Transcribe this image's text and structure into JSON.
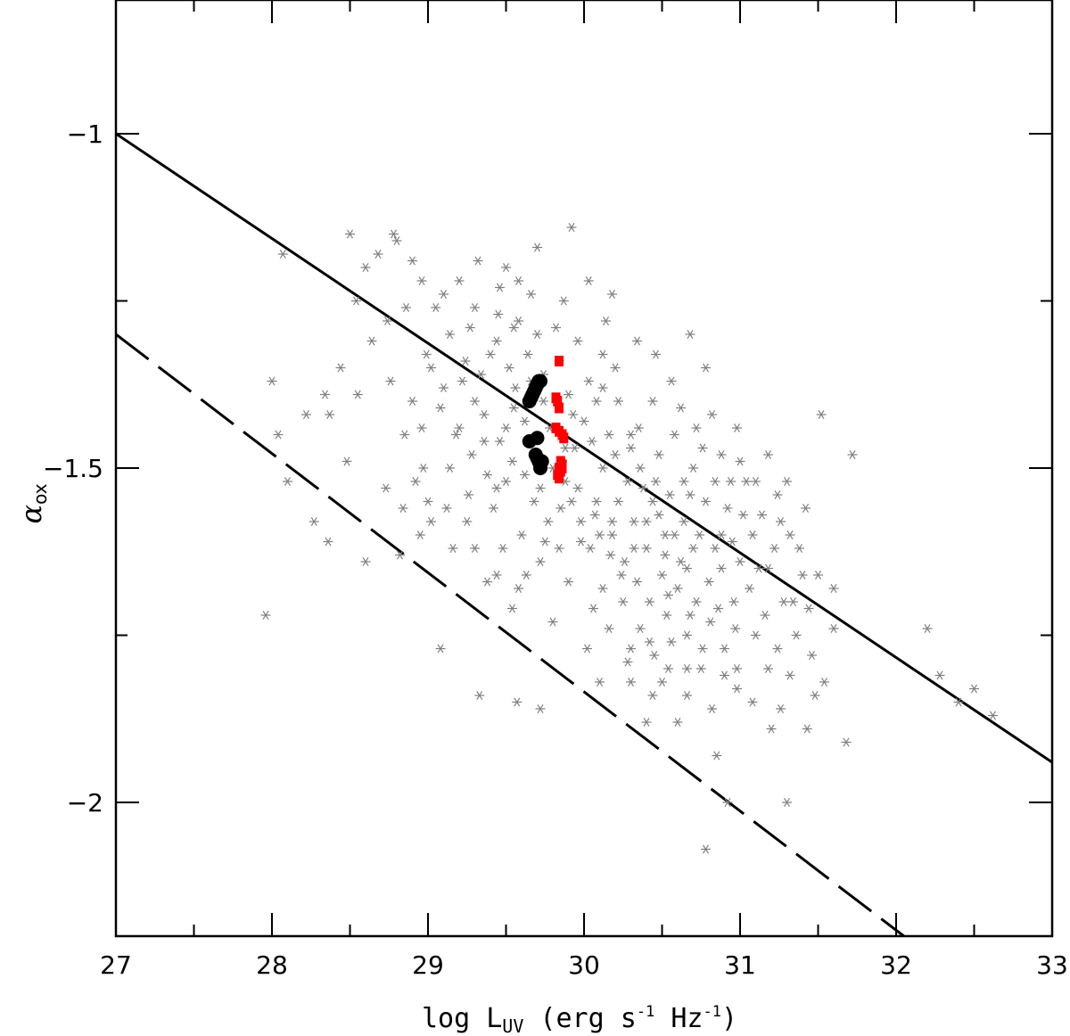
{
  "chart_data": {
    "type": "scatter",
    "title": "",
    "xlabel": {
      "prefix": "log L",
      "subscript": "UV",
      "unit_open": " (erg s",
      "unit_exp1": "-1",
      "unit_mid": " Hz",
      "unit_exp2": "-1",
      "unit_close": ")"
    },
    "ylabel": {
      "symbol": "α",
      "subscript": "ox"
    },
    "xlim": [
      27,
      33
    ],
    "ylim": [
      -2.2,
      -0.8
    ],
    "x_ticks": [
      {
        "value": 27,
        "label": "27"
      },
      {
        "value": 28,
        "label": "28"
      },
      {
        "value": 29,
        "label": "29"
      },
      {
        "value": 30,
        "label": "30"
      },
      {
        "value": 31,
        "label": "31"
      },
      {
        "value": 32,
        "label": "32"
      },
      {
        "value": 33,
        "label": "33"
      }
    ],
    "x_minor_step": 0.5,
    "y_ticks": [
      {
        "value": -1,
        "label": "−1"
      },
      {
        "value": -1.5,
        "label": "−1.5"
      },
      {
        "value": -2,
        "label": "−2"
      }
    ],
    "y_minor_step": 0.25,
    "grid": false,
    "lines": [
      {
        "style": "solid",
        "color": "#000000",
        "points": [
          [
            27,
            -1.0
          ],
          [
            33,
            -1.94
          ]
        ]
      },
      {
        "style": "dashed",
        "color": "#000000",
        "points": [
          [
            27,
            -1.3
          ],
          [
            32.05,
            -2.2
          ]
        ]
      }
    ],
    "scatter_comparison": {
      "marker": "asterisk",
      "color": "#808080",
      "points": [
        [
          28.07,
          -1.18
        ],
        [
          28.04,
          -1.45
        ],
        [
          28.5,
          -1.15
        ],
        [
          28.68,
          -1.18
        ],
        [
          28.8,
          -1.16
        ],
        [
          28.9,
          -1.19
        ],
        [
          28.78,
          -1.15
        ],
        [
          28.54,
          -1.25
        ],
        [
          28.74,
          -1.28
        ],
        [
          28.99,
          -1.33
        ],
        [
          28.44,
          -1.35
        ],
        [
          28.34,
          -1.39
        ],
        [
          28.22,
          -1.42
        ],
        [
          28.37,
          -1.42
        ],
        [
          28.55,
          -1.39
        ],
        [
          28.27,
          -1.58
        ],
        [
          28.36,
          -1.61
        ],
        [
          27.96,
          -1.72
        ],
        [
          28.1,
          -1.52
        ],
        [
          28.0,
          -1.37
        ],
        [
          28.48,
          -1.49
        ],
        [
          28.73,
          -1.53
        ],
        [
          28.85,
          -1.45
        ],
        [
          28.97,
          -1.5
        ],
        [
          29.0,
          -1.55
        ],
        [
          29.2,
          -1.44
        ],
        [
          29.4,
          -1.33
        ],
        [
          29.55,
          -1.41
        ],
        [
          29.32,
          -1.19
        ],
        [
          29.58,
          -1.22
        ],
        [
          29.66,
          -1.24
        ],
        [
          29.55,
          -1.29
        ],
        [
          29.64,
          -1.33
        ],
        [
          29.74,
          -1.36
        ],
        [
          29.92,
          -1.14
        ],
        [
          29.68,
          -1.48
        ],
        [
          29.5,
          -1.52
        ],
        [
          29.42,
          -1.56
        ],
        [
          29.25,
          -1.58
        ],
        [
          29.16,
          -1.62
        ],
        [
          29.38,
          -1.67
        ],
        [
          29.54,
          -1.71
        ],
        [
          29.63,
          -1.66
        ],
        [
          29.75,
          -1.61
        ],
        [
          29.88,
          -1.52
        ],
        [
          29.93,
          -1.42
        ],
        [
          30.03,
          -1.37
        ],
        [
          30.12,
          -1.33
        ],
        [
          30.22,
          -1.4
        ],
        [
          30.3,
          -1.47
        ],
        [
          30.38,
          -1.53
        ],
        [
          30.48,
          -1.57
        ],
        [
          30.52,
          -1.63
        ],
        [
          30.58,
          -1.6
        ],
        [
          30.66,
          -1.65
        ],
        [
          30.72,
          -1.7
        ],
        [
          30.81,
          -1.73
        ],
        [
          30.88,
          -1.65
        ],
        [
          30.95,
          -1.61
        ],
        [
          31.02,
          -1.57
        ],
        [
          31.1,
          -1.52
        ],
        [
          31.18,
          -1.48
        ],
        [
          31.24,
          -1.54
        ],
        [
          31.32,
          -1.6
        ],
        [
          31.4,
          -1.66
        ],
        [
          31.52,
          -1.42
        ],
        [
          31.6,
          -1.68
        ],
        [
          31.6,
          -1.74
        ],
        [
          31.72,
          -1.48
        ],
        [
          31.68,
          -1.91
        ],
        [
          31.32,
          -1.81
        ],
        [
          31.43,
          -1.89
        ],
        [
          31.48,
          -1.84
        ],
        [
          31.2,
          -1.89
        ],
        [
          30.98,
          -1.83
        ],
        [
          30.9,
          -1.81
        ],
        [
          30.82,
          -1.86
        ],
        [
          30.75,
          -1.8
        ],
        [
          30.66,
          -1.75
        ],
        [
          30.53,
          -1.72
        ],
        [
          30.45,
          -1.78
        ],
        [
          30.36,
          -1.74
        ],
        [
          30.25,
          -1.7
        ],
        [
          30.17,
          -1.63
        ],
        [
          30.07,
          -1.57
        ],
        [
          29.98,
          -1.61
        ],
        [
          29.9,
          -1.67
        ],
        [
          29.8,
          -1.73
        ],
        [
          30.02,
          -1.77
        ],
        [
          30.1,
          -1.82
        ],
        [
          30.28,
          -1.79
        ],
        [
          30.44,
          -1.84
        ],
        [
          30.6,
          -1.88
        ],
        [
          30.78,
          -2.07
        ],
        [
          30.92,
          -2.0
        ],
        [
          31.3,
          -2.0
        ],
        [
          32.2,
          -1.74
        ],
        [
          32.28,
          -1.81
        ],
        [
          32.5,
          -1.83
        ],
        [
          32.62,
          -1.87
        ],
        [
          32.4,
          -1.85
        ],
        [
          30.85,
          -1.93
        ],
        [
          30.4,
          -1.88
        ],
        [
          29.72,
          -1.86
        ],
        [
          29.57,
          -1.85
        ],
        [
          29.33,
          -1.84
        ],
        [
          29.08,
          -1.77
        ],
        [
          28.95,
          -1.6
        ],
        [
          28.82,
          -1.63
        ],
        [
          28.6,
          -1.64
        ],
        [
          29.5,
          -1.2
        ],
        [
          29.7,
          -1.17
        ],
        [
          29.05,
          -1.26
        ],
        [
          29.14,
          -1.3
        ],
        [
          29.27,
          -1.29
        ],
        [
          29.45,
          -1.27
        ],
        [
          29.34,
          -1.36
        ],
        [
          29.1,
          -1.38
        ],
        [
          28.9,
          -1.4
        ],
        [
          28.76,
          -1.37
        ],
        [
          29.82,
          -1.29
        ],
        [
          29.96,
          -1.31
        ],
        [
          30.14,
          -1.28
        ],
        [
          30.2,
          -1.35
        ],
        [
          30.34,
          -1.31
        ],
        [
          30.44,
          -1.4
        ],
        [
          30.56,
          -1.37
        ],
        [
          30.68,
          -1.3
        ],
        [
          30.78,
          -1.35
        ],
        [
          30.72,
          -1.44
        ],
        [
          30.88,
          -1.48
        ],
        [
          30.98,
          -1.44
        ],
        [
          30.64,
          -1.52
        ],
        [
          30.78,
          -1.55
        ],
        [
          31.08,
          -1.6
        ],
        [
          31.18,
          -1.65
        ],
        [
          31.28,
          -1.7
        ],
        [
          31.1,
          -1.75
        ],
        [
          30.96,
          -1.7
        ],
        [
          30.9,
          -1.77
        ],
        [
          30.7,
          -1.62
        ],
        [
          30.6,
          -1.68
        ],
        [
          30.5,
          -1.66
        ],
        [
          30.4,
          -1.62
        ],
        [
          30.32,
          -1.58
        ],
        [
          30.22,
          -1.55
        ],
        [
          30.12,
          -1.5
        ],
        [
          30.05,
          -1.46
        ],
        [
          29.94,
          -1.47
        ],
        [
          29.85,
          -1.56
        ],
        [
          29.77,
          -1.58
        ],
        [
          29.68,
          -1.55
        ],
        [
          29.6,
          -1.6
        ],
        [
          29.48,
          -1.62
        ],
        [
          29.38,
          -1.51
        ],
        [
          29.28,
          -1.48
        ],
        [
          29.18,
          -1.45
        ],
        [
          29.08,
          -1.41
        ],
        [
          28.96,
          -1.44
        ],
        [
          29.02,
          -1.35
        ],
        [
          29.36,
          -1.42
        ],
        [
          29.46,
          -1.46
        ],
        [
          29.56,
          -1.38
        ],
        [
          29.62,
          -1.43
        ],
        [
          29.78,
          -1.44
        ],
        [
          29.86,
          -1.49
        ],
        [
          29.96,
          -1.53
        ],
        [
          30.08,
          -1.55
        ],
        [
          30.18,
          -1.6
        ],
        [
          30.26,
          -1.64
        ],
        [
          30.34,
          -1.67
        ],
        [
          30.42,
          -1.7
        ],
        [
          30.55,
          -1.54
        ],
        [
          30.64,
          -1.58
        ],
        [
          30.74,
          -1.6
        ],
        [
          30.84,
          -1.62
        ],
        [
          30.92,
          -1.56
        ],
        [
          31.04,
          -1.52
        ],
        [
          31.14,
          -1.57
        ],
        [
          31.22,
          -1.62
        ],
        [
          30.48,
          -1.48
        ],
        [
          30.58,
          -1.45
        ],
        [
          30.35,
          -1.44
        ],
        [
          30.28,
          -1.52
        ],
        [
          30.16,
          -1.45
        ],
        [
          30.08,
          -1.4
        ],
        [
          30.0,
          -1.43
        ],
        [
          29.9,
          -1.39
        ],
        [
          29.74,
          -1.4
        ],
        [
          29.66,
          -1.37
        ],
        [
          29.52,
          -1.35
        ],
        [
          29.44,
          -1.31
        ],
        [
          29.3,
          -1.26
        ],
        [
          29.2,
          -1.22
        ],
        [
          29.1,
          -1.24
        ],
        [
          29.58,
          -1.28
        ],
        [
          29.7,
          -1.3
        ],
        [
          29.84,
          -1.34
        ],
        [
          30.12,
          -1.38
        ],
        [
          30.46,
          -1.33
        ],
        [
          30.62,
          -1.41
        ],
        [
          30.82,
          -1.42
        ],
        [
          30.7,
          -1.5
        ],
        [
          30.52,
          -1.6
        ],
        [
          30.44,
          -1.55
        ],
        [
          30.36,
          -1.5
        ],
        [
          30.2,
          -1.48
        ],
        [
          30.24,
          -1.66
        ],
        [
          30.12,
          -1.68
        ],
        [
          30.04,
          -1.62
        ],
        [
          30.56,
          -1.76
        ],
        [
          30.66,
          -1.8
        ],
        [
          30.76,
          -1.77
        ],
        [
          30.86,
          -1.71
        ],
        [
          30.97,
          -1.74
        ],
        [
          31.06,
          -1.68
        ],
        [
          31.16,
          -1.72
        ],
        [
          31.24,
          -1.77
        ],
        [
          31.36,
          -1.75
        ],
        [
          31.44,
          -1.71
        ],
        [
          29.87,
          -1.25
        ],
        [
          30.03,
          -1.22
        ],
        [
          30.18,
          -1.24
        ],
        [
          29.46,
          -1.23
        ],
        [
          28.64,
          -1.31
        ],
        [
          28.6,
          -1.2
        ],
        [
          28.96,
          -1.22
        ],
        [
          28.86,
          -1.26
        ],
        [
          29.24,
          -1.34
        ],
        [
          29.14,
          -1.5
        ],
        [
          29.26,
          -1.54
        ],
        [
          29.12,
          -1.56
        ],
        [
          29.02,
          -1.58
        ],
        [
          28.92,
          -1.52
        ],
        [
          28.84,
          -1.56
        ],
        [
          29.3,
          -1.62
        ],
        [
          29.44,
          -1.66
        ],
        [
          29.58,
          -1.68
        ],
        [
          29.72,
          -1.64
        ],
        [
          29.84,
          -1.62
        ],
        [
          30.3,
          -1.45
        ],
        [
          30.4,
          -1.58
        ],
        [
          30.62,
          -1.64
        ],
        [
          30.54,
          -1.69
        ],
        [
          30.68,
          -1.72
        ],
        [
          30.8,
          -1.67
        ],
        [
          30.88,
          -1.6
        ],
        [
          31.0,
          -1.64
        ],
        [
          31.12,
          -1.65
        ],
        [
          30.94,
          -1.52
        ],
        [
          31.0,
          -1.49
        ],
        [
          30.84,
          -1.52
        ],
        [
          30.76,
          -1.47
        ],
        [
          30.68,
          -1.54
        ],
        [
          30.46,
          -1.52
        ],
        [
          30.32,
          -1.62
        ],
        [
          30.18,
          -1.58
        ],
        [
          30.1,
          -1.6
        ],
        [
          29.98,
          -1.58
        ],
        [
          29.92,
          -1.55
        ],
        [
          29.3,
          -1.4
        ],
        [
          29.22,
          -1.37
        ],
        [
          29.5,
          -1.44
        ],
        [
          29.54,
          -1.49
        ],
        [
          29.44,
          -1.53
        ],
        [
          29.36,
          -1.46
        ],
        [
          29.62,
          -1.51
        ],
        [
          29.72,
          -1.53
        ],
        [
          29.8,
          -1.5
        ],
        [
          29.88,
          -1.47
        ],
        [
          31.54,
          -1.82
        ],
        [
          31.46,
          -1.78
        ],
        [
          31.34,
          -1.7
        ],
        [
          31.5,
          -1.66
        ],
        [
          31.38,
          -1.62
        ],
        [
          31.26,
          -1.58
        ],
        [
          31.3,
          -1.52
        ],
        [
          31.42,
          -1.56
        ],
        [
          30.98,
          -1.8
        ],
        [
          31.08,
          -1.85
        ],
        [
          31.18,
          -1.8
        ],
        [
          31.26,
          -1.86
        ],
        [
          30.3,
          -1.82
        ],
        [
          30.5,
          -1.82
        ],
        [
          30.66,
          -1.84
        ],
        [
          30.54,
          -1.8
        ],
        [
          30.42,
          -1.76
        ],
        [
          30.3,
          -1.77
        ],
        [
          30.16,
          -1.74
        ],
        [
          30.06,
          -1.71
        ]
      ]
    },
    "scatter_black": {
      "marker": "circle",
      "color": "#000000",
      "points": [
        [
          29.65,
          -1.4
        ],
        [
          29.66,
          -1.395
        ],
        [
          29.67,
          -1.39
        ],
        [
          29.68,
          -1.385
        ],
        [
          29.69,
          -1.38
        ],
        [
          29.7,
          -1.375
        ],
        [
          29.71,
          -1.37
        ],
        [
          29.72,
          -1.37
        ],
        [
          29.65,
          -1.46
        ],
        [
          29.7,
          -1.455
        ],
        [
          29.69,
          -1.48
        ],
        [
          29.7,
          -1.485
        ],
        [
          29.71,
          -1.49
        ],
        [
          29.72,
          -1.495
        ],
        [
          29.73,
          -1.49
        ],
        [
          29.72,
          -1.5
        ]
      ]
    },
    "scatter_red": {
      "marker": "square",
      "color": "#ff0000",
      "points": [
        [
          29.84,
          -1.34
        ],
        [
          29.82,
          -1.395
        ],
        [
          29.83,
          -1.4
        ],
        [
          29.84,
          -1.41
        ],
        [
          29.82,
          -1.44
        ],
        [
          29.84,
          -1.445
        ],
        [
          29.86,
          -1.45
        ],
        [
          29.87,
          -1.455
        ],
        [
          29.85,
          -1.49
        ],
        [
          29.86,
          -1.495
        ],
        [
          29.84,
          -1.5
        ],
        [
          29.85,
          -1.505
        ],
        [
          29.83,
          -1.51
        ],
        [
          29.84,
          -1.515
        ],
        [
          29.86,
          -1.5
        ]
      ]
    }
  }
}
